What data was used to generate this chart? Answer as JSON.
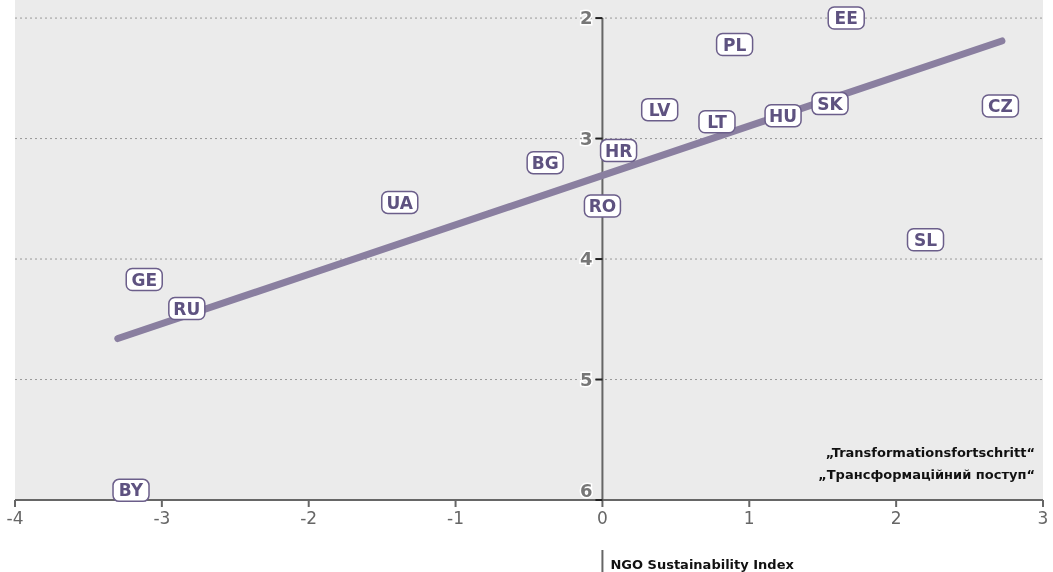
{
  "chart_data": {
    "type": "scatter",
    "xlabel": "„Transformationsfortschritt“\n„Трансформаційний поступ“",
    "xlim": [
      -4,
      3
    ],
    "xticks": [
      -4,
      -3,
      -2,
      -1,
      0,
      1,
      2,
      3
    ],
    "ylim": [
      6,
      1.85
    ],
    "yticks": [
      2,
      3,
      4,
      5,
      6
    ],
    "grid": "y",
    "series": [
      {
        "marker": "square",
        "color": "#6b5e8a",
        "x": [
          1.66,
          0.9,
          0.39,
          0.78,
          1.23,
          1.55,
          2.71,
          0.11,
          -0.39,
          0.0,
          -1.38,
          2.2,
          -3.12,
          -2.83,
          -3.21
        ],
        "values": [
          2.0,
          2.22,
          2.76,
          2.86,
          2.81,
          2.71,
          2.73,
          3.1,
          3.2,
          3.56,
          3.53,
          3.84,
          4.17,
          4.41,
          5.92
        ]
      },
      {
        "type": "line",
        "color": "#8a7fa0",
        "x": [
          -3.3,
          2.72
        ],
        "values": [
          4.66,
          2.19
        ]
      }
    ],
    "annotations": [
      {
        "text": "EE",
        "x": 1.66,
        "y": 2.0
      },
      {
        "text": "PL",
        "x": 0.9,
        "y": 2.22
      },
      {
        "text": "LV",
        "x": 0.39,
        "y": 2.76
      },
      {
        "text": "LT",
        "x": 0.78,
        "y": 2.86
      },
      {
        "text": "HU",
        "x": 1.23,
        "y": 2.81
      },
      {
        "text": "SK",
        "x": 1.55,
        "y": 2.71
      },
      {
        "text": "CZ",
        "x": 2.71,
        "y": 2.73
      },
      {
        "text": "HR",
        "x": 0.11,
        "y": 3.1
      },
      {
        "text": "BG",
        "x": -0.39,
        "y": 3.2
      },
      {
        "text": "RO",
        "x": 0.0,
        "y": 3.56
      },
      {
        "text": "UA",
        "x": -1.38,
        "y": 3.53
      },
      {
        "text": "SL",
        "x": 2.2,
        "y": 3.84
      },
      {
        "text": "GE",
        "x": -3.12,
        "y": 4.17
      },
      {
        "text": "RU",
        "x": -2.83,
        "y": 4.41
      },
      {
        "text": "BY",
        "x": -3.21,
        "y": 5.92
      },
      "NGO Sustainability Index"
    ]
  }
}
